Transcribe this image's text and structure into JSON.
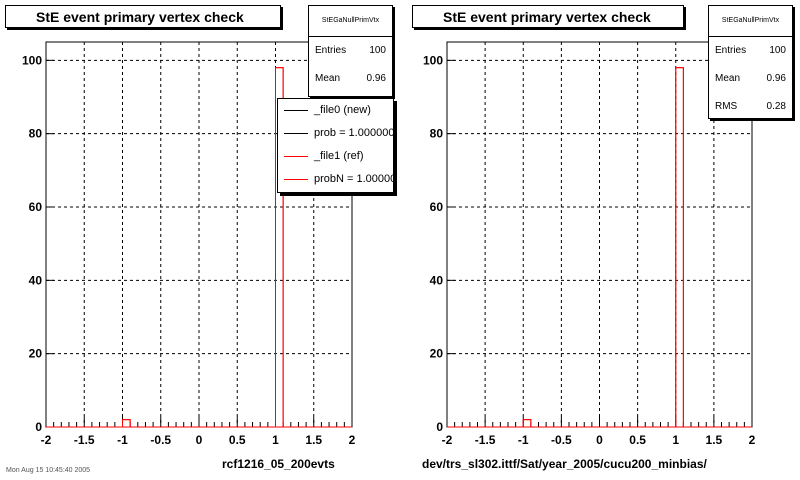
{
  "colors": {
    "new": "#000000",
    "ref": "#ff0000",
    "grid": "#000000"
  },
  "panels": [
    {
      "title": "StE event primary vertex check",
      "stats": {
        "name": "StEGaNullPrimVtx",
        "rows": [
          {
            "label": "Entries",
            "value": "100"
          },
          {
            "label": "Mean",
            "value": "0.96"
          }
        ]
      },
      "bottom_label": "rcf1216_05_200evts",
      "legend": [
        {
          "text": "_file0 (new)",
          "color": "#000000"
        },
        {
          "text": "prob = 1.000000",
          "color": "#000000"
        },
        {
          "text": "_file1 (ref)",
          "color": "#ff0000"
        },
        {
          "text": "probN = 1.000000",
          "color": "#ff0000"
        }
      ]
    },
    {
      "title": "StE event primary vertex check",
      "stats": {
        "name": "StEGaNullPrimVtx",
        "rows": [
          {
            "label": "Entries",
            "value": "100"
          },
          {
            "label": "Mean",
            "value": "0.96"
          },
          {
            "label": "RMS",
            "value": "0.28"
          }
        ]
      },
      "bottom_label": "dev/trs_sl302.ittf/Sat/year_2005/cucu200_minbias/"
    }
  ],
  "date_text": "Mon Aug 15 10:45:40 2005",
  "chart_data": [
    {
      "type": "bar",
      "title": "StE event primary vertex check",
      "xlim": [
        -2,
        2
      ],
      "ylim": [
        0,
        105
      ],
      "xticks": [
        "-2",
        "-1.5",
        "-1",
        "-0.5",
        "0",
        "0.5",
        "1",
        "1.5",
        "2"
      ],
      "yticks": [
        "0",
        "20",
        "40",
        "60",
        "80",
        "100"
      ],
      "grid": true,
      "bins": 40,
      "series": [
        {
          "name": "_file1 (ref)",
          "color": "#ff0000",
          "bars": [
            {
              "x0": -1.0,
              "x1": -0.9,
              "y": 2
            },
            {
              "x0": 1.0,
              "x1": 1.1,
              "y": 98
            }
          ]
        }
      ]
    },
    {
      "type": "bar",
      "title": "StE event primary vertex check",
      "xlim": [
        -2,
        2
      ],
      "ylim": [
        0,
        105
      ],
      "xticks": [
        "-2",
        "-1.5",
        "-1",
        "-0.5",
        "0",
        "0.5",
        "1",
        "1.5",
        "2"
      ],
      "yticks": [
        "0",
        "20",
        "40",
        "60",
        "80",
        "100"
      ],
      "grid": true,
      "bins": 40,
      "series": [
        {
          "name": "",
          "color": "#ff0000",
          "bars": [
            {
              "x0": -1.0,
              "x1": -0.9,
              "y": 2
            },
            {
              "x0": 1.0,
              "x1": 1.1,
              "y": 98
            }
          ]
        }
      ]
    }
  ]
}
